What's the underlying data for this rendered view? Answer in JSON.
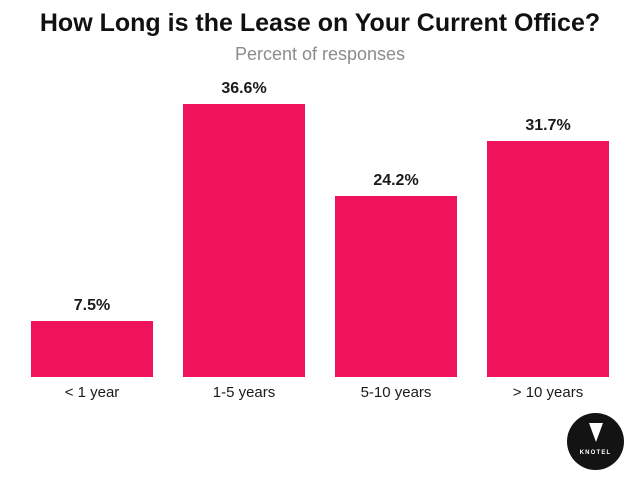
{
  "chart_data": {
    "type": "bar",
    "title": "How Long is the Lease on Your Current Office?",
    "subtitle": "Percent of responses",
    "categories": [
      "< 1 year",
      "1-5 years",
      "5-10 years",
      "> 10 years"
    ],
    "values": [
      7.5,
      36.6,
      24.2,
      31.7
    ],
    "value_labels": [
      "7.5%",
      "36.6%",
      "24.2%",
      "31.7%"
    ],
    "xlabel": "",
    "ylabel": "",
    "ylim": [
      0,
      40
    ],
    "grid": false,
    "axes_visible": false,
    "legend": "none",
    "bar_color": "#F0135B",
    "title_color": "#111111",
    "subtitle_color": "#8c8c8c",
    "label_color": "#1a1a1a"
  },
  "logo": {
    "text": "KNOTEL",
    "background_color": "#131313",
    "glyph": "inverted-triangle",
    "glyph_color": "#ffffff"
  }
}
